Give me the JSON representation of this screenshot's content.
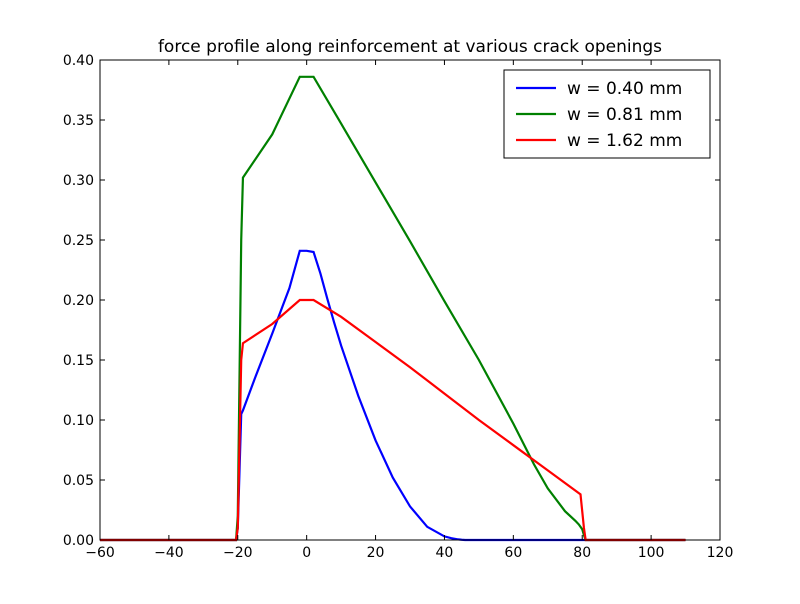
{
  "chart_data": {
    "type": "line",
    "title": "force profile along reinforcement at various crack openings",
    "xlabel": "",
    "ylabel": "",
    "xlim": [
      -60,
      120
    ],
    "ylim": [
      0,
      0.4
    ],
    "xticks": [
      -60,
      -40,
      -20,
      0,
      20,
      40,
      60,
      80,
      100,
      120
    ],
    "yticks": [
      0.0,
      0.05,
      0.1,
      0.15,
      0.2,
      0.25,
      0.3,
      0.35,
      0.4
    ],
    "xtick_labels": [
      "−60",
      "−40",
      "−20",
      "0",
      "20",
      "40",
      "60",
      "80",
      "100",
      "120"
    ],
    "ytick_labels": [
      "0.00",
      "0.05",
      "0.10",
      "0.15",
      "0.20",
      "0.25",
      "0.30",
      "0.35",
      "0.40"
    ],
    "grid": false,
    "legend_position": "top-right",
    "series": [
      {
        "name": "w = 0.40 mm",
        "color": "#0000ff",
        "x": [
          -60,
          -20.5,
          -20,
          -19,
          -18.5,
          -15,
          -10,
          -5,
          -2,
          0,
          2,
          4,
          6,
          8,
          10,
          15,
          20,
          25,
          30,
          35,
          40,
          42,
          44,
          45,
          46,
          48,
          50,
          60,
          80,
          100,
          110
        ],
        "y": [
          0,
          0,
          0.01,
          0.105,
          0.108,
          0.135,
          0.172,
          0.21,
          0.241,
          0.241,
          0.24,
          0.222,
          0.201,
          0.181,
          0.162,
          0.12,
          0.083,
          0.052,
          0.028,
          0.011,
          0.003,
          0.0015,
          0.0005,
          0.0002,
          0,
          0,
          0,
          0,
          0,
          0,
          0
        ]
      },
      {
        "name": "w = 0.81 mm",
        "color": "#008000",
        "x": [
          -60,
          -20.5,
          -20,
          -19,
          -18.5,
          -10,
          -2,
          0,
          2,
          10,
          20,
          30,
          40,
          50,
          60,
          66,
          70,
          75,
          78,
          79,
          80,
          80.5,
          81,
          100,
          110
        ],
        "y": [
          0,
          0,
          0.02,
          0.25,
          0.302,
          0.338,
          0.386,
          0.386,
          0.386,
          0.347,
          0.298,
          0.249,
          0.199,
          0.15,
          0.097,
          0.063,
          0.043,
          0.024,
          0.016,
          0.013,
          0.009,
          0.004,
          0,
          0,
          0
        ]
      },
      {
        "name": "w = 1.62 mm",
        "color": "#ff0000",
        "x": [
          -60,
          -20.5,
          -20,
          -19,
          -18.5,
          -10,
          -2,
          0,
          2,
          10,
          20,
          30,
          40,
          50,
          60,
          70,
          79.5,
          80.5,
          81,
          100,
          110
        ],
        "y": [
          0,
          0,
          0.01,
          0.15,
          0.164,
          0.18,
          0.2,
          0.2,
          0.2,
          0.186,
          0.165,
          0.144,
          0.122,
          0.1,
          0.079,
          0.058,
          0.038,
          0.01,
          0,
          0,
          0
        ]
      }
    ]
  }
}
